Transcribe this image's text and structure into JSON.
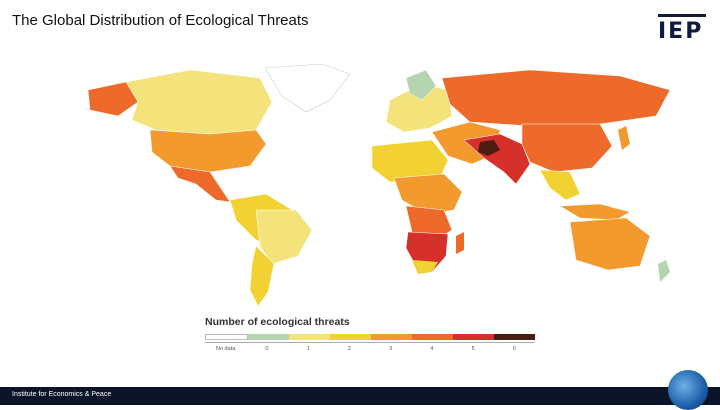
{
  "header": {
    "title": "The Global Distribution of Ecological Threats",
    "logo_text": "IEP"
  },
  "legend": {
    "title": "Number of ecological threats",
    "items": [
      {
        "label": "No data",
        "color": "#ffffff"
      },
      {
        "label": "0",
        "color": "#b5d5b0"
      },
      {
        "label": "1",
        "color": "#f3e37a"
      },
      {
        "label": "2",
        "color": "#f1d232"
      },
      {
        "label": "3",
        "color": "#f39a2e"
      },
      {
        "label": "4",
        "color": "#ee6a2a"
      },
      {
        "label": "5",
        "color": "#d6302b"
      },
      {
        "label": "6",
        "color": "#4a1c12"
      }
    ]
  },
  "footer": {
    "text": "Institute for Economics & Peace"
  }
}
